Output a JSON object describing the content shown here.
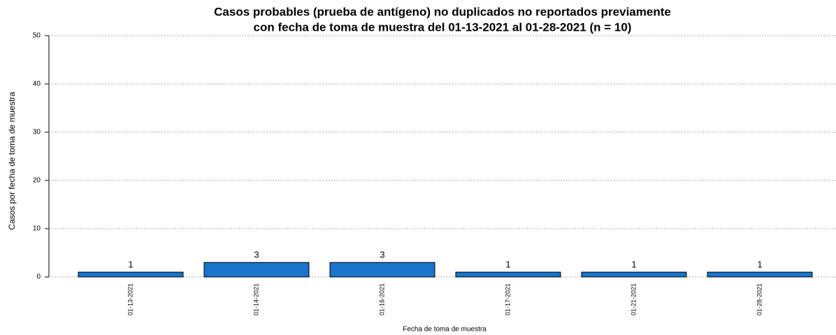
{
  "chart_data": {
    "type": "bar",
    "title": [
      "Casos probables (prueba de antígeno) no duplicados no reportados previamente",
      "con fecha de toma de muestra del 01-13-2021 al 01-28-2021 (n = 10)"
    ],
    "xlabel": "Fecha de toma de muestra",
    "ylabel": "Casos por fecha de toma de muestra",
    "categories": [
      "01-13-2021",
      "01-14-2021",
      "01-16-2021",
      "01-17-2021",
      "01-21-2021",
      "01-28-2021"
    ],
    "values": [
      1,
      3,
      3,
      1,
      1,
      1
    ],
    "color": "#1874cd",
    "ylim": [
      0,
      50
    ],
    "yticks": [
      0,
      10,
      20,
      30,
      40,
      50
    ],
    "grid": true
  }
}
